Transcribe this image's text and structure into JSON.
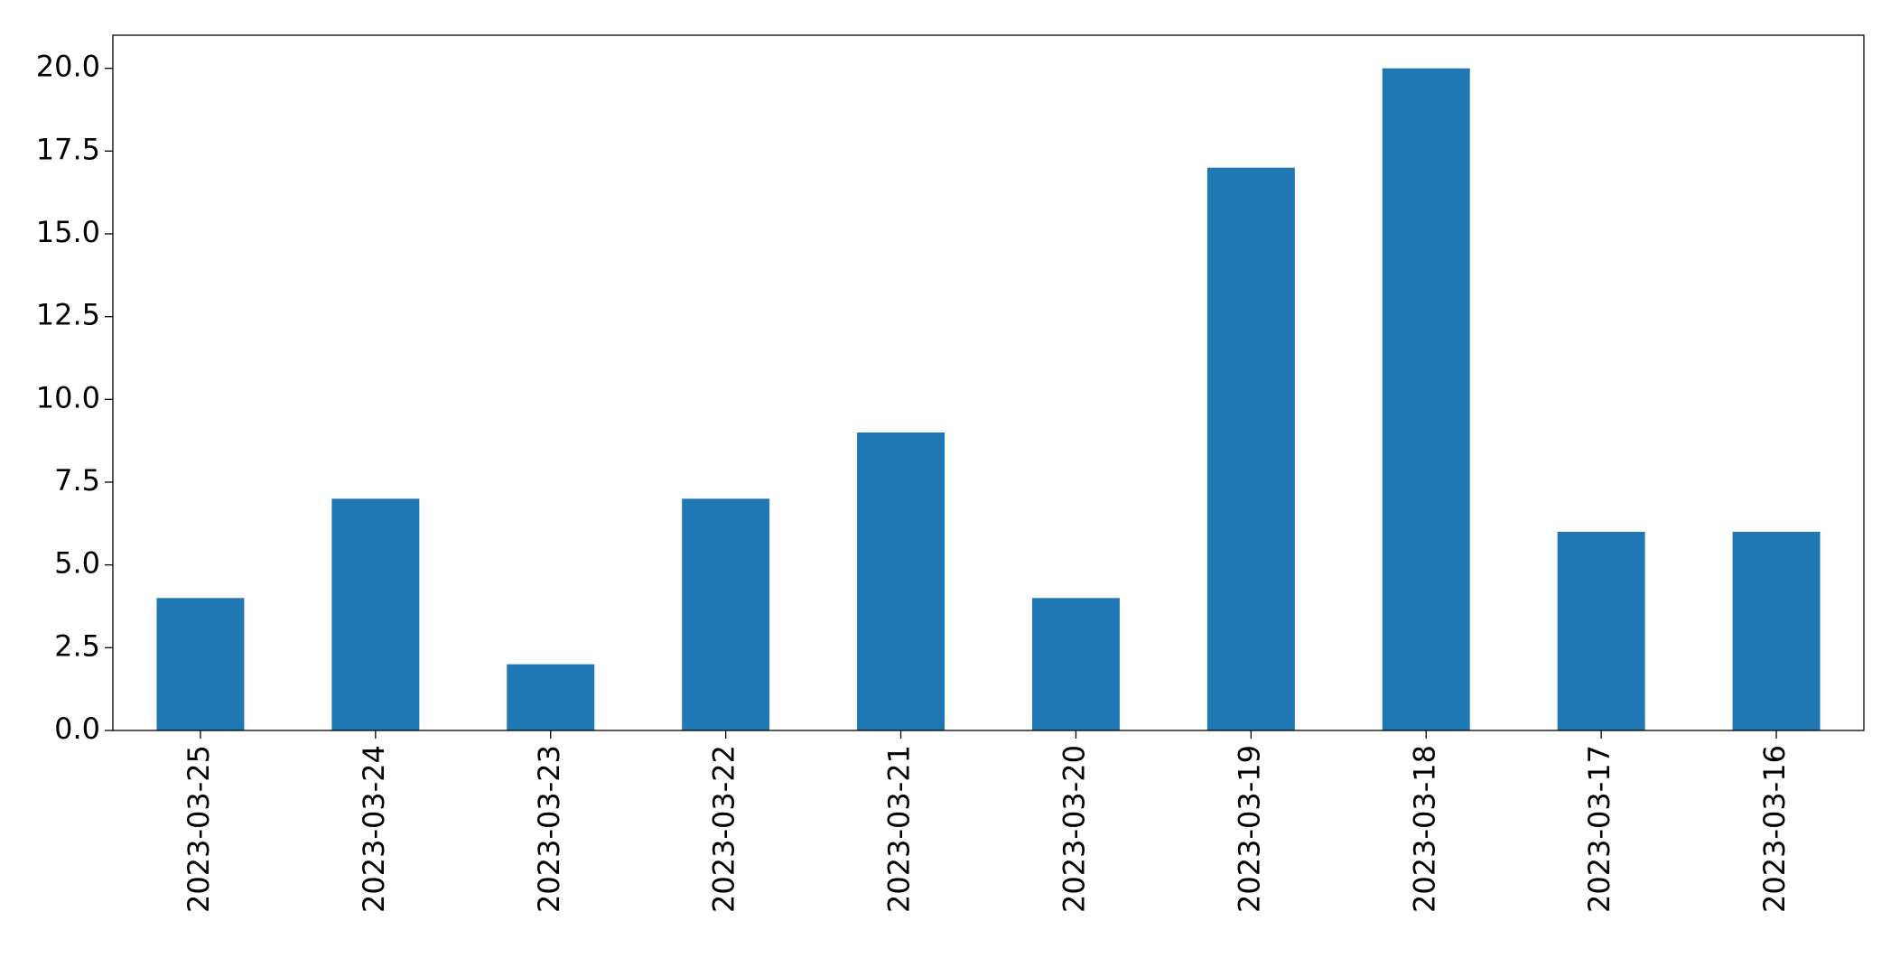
{
  "chart_data": {
    "type": "bar",
    "categories": [
      "2023-03-25",
      "2023-03-24",
      "2023-03-23",
      "2023-03-22",
      "2023-03-21",
      "2023-03-20",
      "2023-03-19",
      "2023-03-18",
      "2023-03-17",
      "2023-03-16"
    ],
    "values": [
      4,
      7,
      2,
      7,
      9,
      4,
      17,
      20,
      6,
      6
    ],
    "color": "#1f77b4",
    "ylim": [
      0,
      21
    ],
    "yticks": [
      {
        "value": 0,
        "label": "0.0"
      },
      2.5,
      {
        "value": 5,
        "label": "5.0"
      },
      7.5,
      {
        "value": 10,
        "label": "10.0"
      },
      12.5,
      {
        "value": 15,
        "label": "15.0"
      },
      17.5,
      {
        "value": 20,
        "label": "20.0"
      }
    ],
    "grid": false
  }
}
